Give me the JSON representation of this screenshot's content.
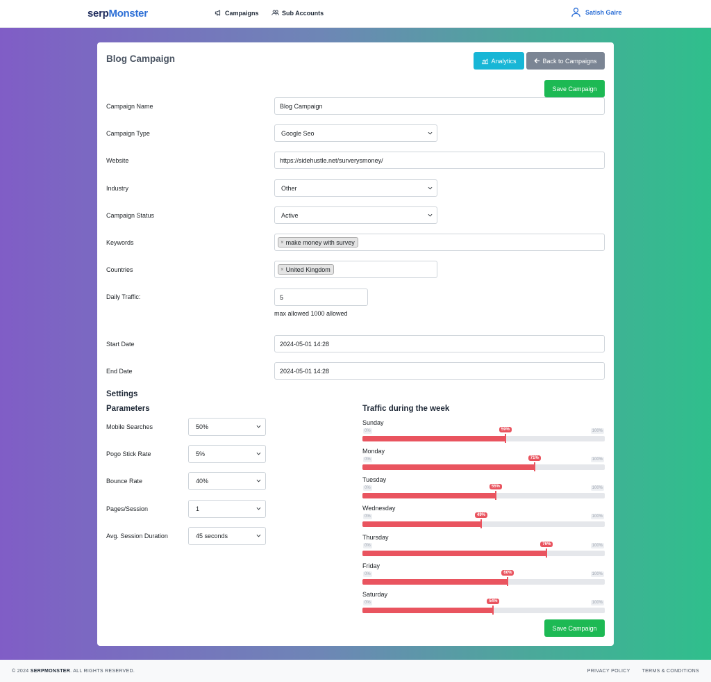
{
  "nav": {
    "logo_part1": "serp",
    "logo_part2": "Monster",
    "campaigns": "Campaigns",
    "sub_accounts": "Sub Accounts",
    "user_name": "Satish Gaire"
  },
  "card": {
    "title": "Blog Campaign",
    "analytics_label": "Analytics",
    "back_label": "Back to Campaigns",
    "save_label": "Save Campaign"
  },
  "form": {
    "campaign_name_label": "Campaign Name",
    "campaign_name_value": "Blog Campaign",
    "campaign_type_label": "Campaign Type",
    "campaign_type_value": "Google Seo",
    "website_label": "Website",
    "website_value": "https://sidehustle.net/surverysmoney/",
    "industry_label": "Industry",
    "industry_value": "Other",
    "status_label": "Campaign Status",
    "status_value": "Active",
    "keywords_label": "Keywords",
    "keywords": [
      "make money with survey"
    ],
    "countries_label": "Countries",
    "countries": [
      "United Kingdom"
    ],
    "daily_traffic_label": "Daily Traffic:",
    "daily_traffic_value": "5",
    "daily_traffic_hint": "max allowed 1000 allowed",
    "start_date_label": "Start Date",
    "start_date_value": "2024-05-01 14:28",
    "end_date_label": "End Date",
    "end_date_value": "2024-05-01 14:28",
    "tag_remove_glyph": "×"
  },
  "settings": {
    "title": "Settings",
    "params_title": "Parameters",
    "params": [
      {
        "label": "Mobile Searches",
        "value": "50%"
      },
      {
        "label": "Pogo Stick Rate",
        "value": "5%"
      },
      {
        "label": "Bounce Rate",
        "value": "40%"
      },
      {
        "label": "Pages/Session",
        "value": "1"
      },
      {
        "label": "Avg. Session Duration",
        "value": "45 seconds"
      }
    ],
    "traffic_title": "Traffic during the week",
    "slider_min": "0%",
    "slider_max": "100%",
    "traffic": [
      {
        "day": "Sunday",
        "value": 59,
        "label": "59%"
      },
      {
        "day": "Monday",
        "value": 71,
        "label": "71%"
      },
      {
        "day": "Tuesday",
        "value": 55,
        "label": "55%"
      },
      {
        "day": "Wednesday",
        "value": 49,
        "label": "49%"
      },
      {
        "day": "Thursday",
        "value": 76,
        "label": "76%"
      },
      {
        "day": "Friday",
        "value": 60,
        "label": "60%"
      },
      {
        "day": "Saturday",
        "value": 54,
        "label": "54%"
      }
    ]
  },
  "footer": {
    "copy_prefix": "© 2024",
    "copy_brand": "SERPMONSTER",
    "copy_suffix": ". ALL RIGHTS RESERVED.",
    "privacy": "PRIVACY POLICY",
    "terms": "TERMS & CONDITIONS"
  },
  "colors": {
    "accent_blue": "#2c6fd6",
    "save_green": "#1db954",
    "analytics_cyan": "#17b6d6",
    "slider_red": "#e9545f"
  }
}
